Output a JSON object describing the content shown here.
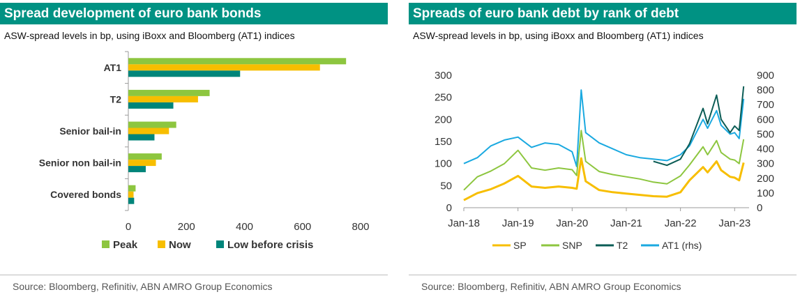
{
  "left": {
    "title": "Spread development of euro bank bonds",
    "subtitle": "ASW-spread levels in bp, using iBoxx and Bloomberg (AT1) indices",
    "source": "Source: Bloomberg, Refinitiv, ABN AMRO Group Economics"
  },
  "right": {
    "title": "Spreads of euro bank debt by rank of debt",
    "subtitle": "ASW-spread levels in bp, using iBoxx and Bloomberg (AT1) indices",
    "source": "Source:  Bloomberg, Refinitiv, ABN AMRO Group Economics"
  },
  "chart_data": [
    {
      "type": "bar",
      "orientation": "horizontal",
      "title": "Spread development of euro bank bonds",
      "categories": [
        "AT1",
        "T2",
        "Senior bail-in",
        "Senior non bail-in",
        "Covered bonds"
      ],
      "series": [
        {
          "name": "Peak",
          "color": "#8dc63f",
          "values": [
            750,
            280,
            165,
            115,
            25
          ]
        },
        {
          "name": "Now",
          "color": "#f7be00",
          "values": [
            660,
            240,
            140,
            95,
            18
          ]
        },
        {
          "name": "Low before crisis",
          "color": "#00857a",
          "values": [
            385,
            155,
            90,
            60,
            20
          ]
        }
      ],
      "xlim": [
        0,
        800
      ],
      "xticks": [
        "0",
        "200",
        "400",
        "600",
        "800"
      ],
      "legend": "bottom",
      "grid": false
    },
    {
      "type": "line",
      "title": "Spreads of euro bank debt by rank of debt",
      "x": [
        "2018-01",
        "2018-04",
        "2018-07",
        "2018-10",
        "2019-01",
        "2019-04",
        "2019-07",
        "2019-10",
        "2020-01",
        "2020-02",
        "2020-03",
        "2020-04",
        "2020-07",
        "2020-10",
        "2021-01",
        "2021-04",
        "2021-07",
        "2021-10",
        "2022-01",
        "2022-03",
        "2022-06",
        "2022-07",
        "2022-09",
        "2022-10",
        "2022-12",
        "2023-01",
        "2023-02",
        "2023-03"
      ],
      "series": [
        {
          "name": "SP",
          "color": "#f7be00",
          "axis": "left",
          "values": [
            17,
            33,
            42,
            55,
            72,
            48,
            45,
            48,
            45,
            43,
            112,
            60,
            40,
            35,
            32,
            29,
            26,
            25,
            35,
            62,
            92,
            80,
            105,
            85,
            70,
            68,
            62,
            102
          ]
        },
        {
          "name": "SNP",
          "color": "#8dc63f",
          "axis": "left",
          "values": [
            40,
            70,
            83,
            100,
            130,
            90,
            85,
            90,
            86,
            73,
            175,
            105,
            82,
            75,
            70,
            65,
            58,
            54,
            72,
            97,
            138,
            120,
            152,
            125,
            110,
            108,
            100,
            155
          ]
        },
        {
          "name": "T2",
          "color": "#0b5c55",
          "axis": "left",
          "values": [
            null,
            null,
            null,
            null,
            null,
            null,
            null,
            null,
            null,
            null,
            null,
            null,
            null,
            null,
            null,
            null,
            105,
            96,
            110,
            145,
            225,
            190,
            255,
            200,
            170,
            185,
            175,
            275
          ]
        },
        {
          "name": "AT1 (rhs)",
          "color": "#1aa9e0",
          "axis": "right",
          "values": [
            300,
            340,
            420,
            460,
            480,
            410,
            440,
            430,
            380,
            280,
            800,
            510,
            440,
            400,
            360,
            340,
            330,
            320,
            360,
            420,
            600,
            540,
            660,
            560,
            500,
            510,
            470,
            740
          ]
        }
      ],
      "xticks": [
        "Jan-18",
        "Jan-19",
        "Jan-20",
        "Jan-21",
        "Jan-22",
        "Jan-23"
      ],
      "ylim": [
        0,
        300
      ],
      "yticks": [
        "0",
        "50",
        "100",
        "150",
        "200",
        "250",
        "300"
      ],
      "y2lim": [
        0,
        900
      ],
      "y2ticks": [
        "0",
        "100",
        "200",
        "300",
        "400",
        "500",
        "600",
        "700",
        "800",
        "900"
      ],
      "legend": "bottom",
      "grid": false
    }
  ]
}
